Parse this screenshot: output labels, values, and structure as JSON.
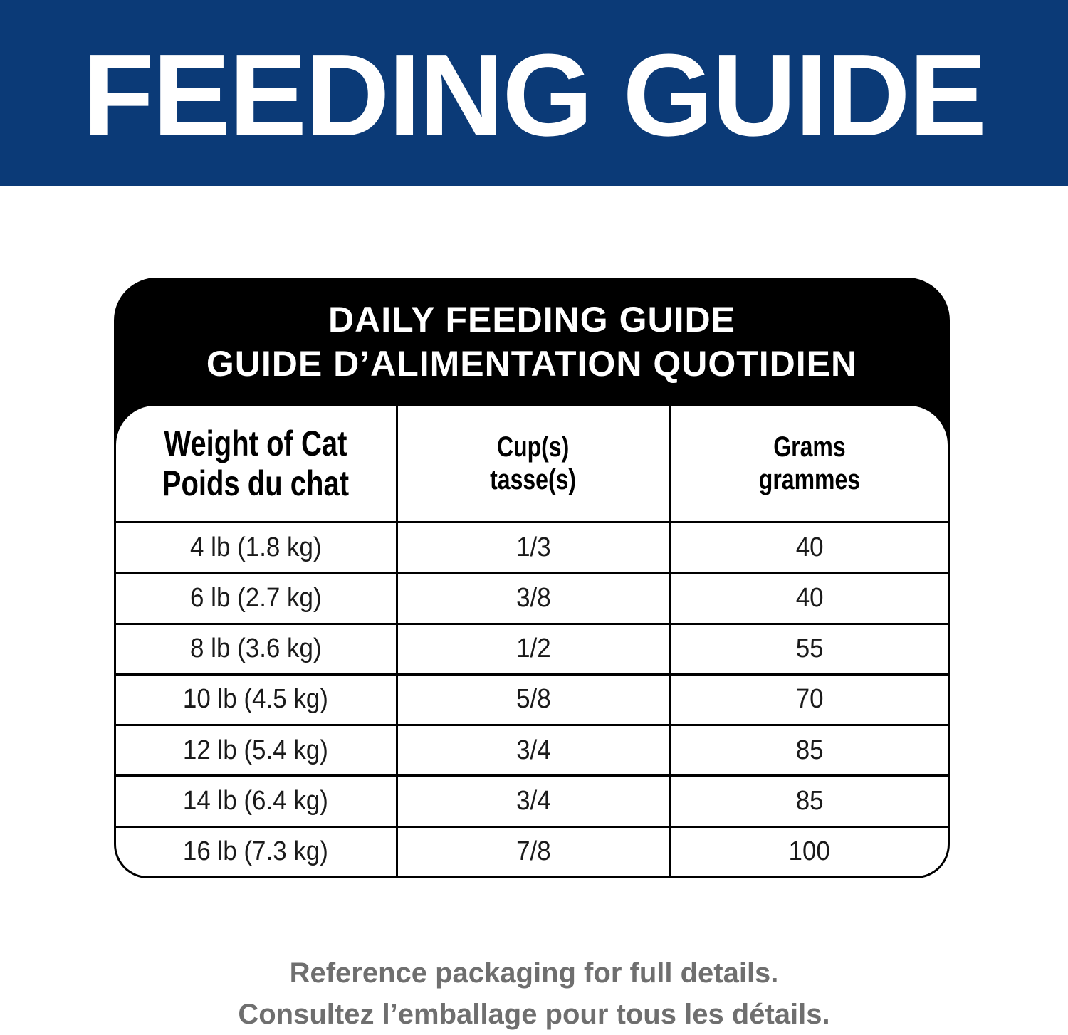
{
  "banner": {
    "title": "FEEDING GUIDE",
    "background_color": "#0b3a77"
  },
  "card": {
    "title_en": "DAILY FEEDING GUIDE",
    "title_fr": "GUIDE D’ALIMENTATION QUOTIDIEN"
  },
  "table": {
    "headers": [
      {
        "en": "Weight of Cat",
        "fr": "Poids du chat"
      },
      {
        "en": "Cup(s)",
        "fr": "tasse(s)"
      },
      {
        "en": "Grams",
        "fr": "grammes"
      }
    ],
    "rows": [
      [
        "4 lb (1.8 kg)",
        "1/3",
        "40"
      ],
      [
        "6 lb (2.7 kg)",
        "3/8",
        "40"
      ],
      [
        "8 lb (3.6 kg)",
        "1/2",
        "55"
      ],
      [
        "10 lb (4.5 kg)",
        "5/8",
        "70"
      ],
      [
        "12 lb (5.4 kg)",
        "3/4",
        "85"
      ],
      [
        "14 lb (6.4 kg)",
        "3/4",
        "85"
      ],
      [
        "16 lb (7.3 kg)",
        "7/8",
        "100"
      ]
    ]
  },
  "footer": {
    "line_en": "Reference packaging for full details.",
    "line_fr": "Consultez l’emballage pour tous les détails."
  }
}
